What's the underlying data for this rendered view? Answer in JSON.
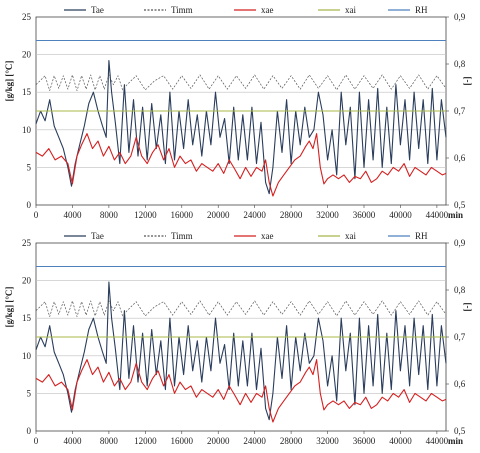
{
  "colors": {
    "Tae": "#2a3d5c",
    "Timm": "#555555",
    "xae": "#d42020",
    "xai": "#a8b84a",
    "RH": "#4f81bd",
    "grid": "#bfbfbf",
    "axis": "#444444"
  },
  "chart_data": [
    {
      "type": "line",
      "ylabel": "[g/kg] [°C]",
      "y2label": "[-]",
      "xunit": "min",
      "xlim": [
        0,
        45000
      ],
      "ylim": [
        0,
        25
      ],
      "y2lim": [
        0.5,
        0.9
      ],
      "x_ticks": [
        "0",
        "4000",
        "8000",
        "12000",
        "16000",
        "20000",
        "24000",
        "28000",
        "32000",
        "36000",
        "40000",
        "44000"
      ],
      "y_ticks": [
        "0",
        "5",
        "10",
        "15",
        "20",
        "25"
      ],
      "y2_ticks": [
        "0,5",
        "0,6",
        "0,7",
        "0,8",
        "0,9"
      ],
      "grid": true,
      "legend_position": "top",
      "series": [
        {
          "name": "Tae",
          "style": "solid",
          "x": [
            0,
            500,
            1000,
            1500,
            2000,
            2500,
            3000,
            3500,
            3900,
            4300,
            4800,
            5300,
            5800,
            6300,
            6800,
            7300,
            7700,
            8000,
            8300,
            8700,
            9200,
            9700,
            10200,
            10700,
            11200,
            11700,
            12200,
            12700,
            13200,
            13700,
            14200,
            14700,
            15200,
            15700,
            16200,
            16700,
            17200,
            17700,
            18200,
            18700,
            19200,
            19700,
            20200,
            20700,
            21200,
            21700,
            22200,
            22700,
            23200,
            23700,
            24200,
            24700,
            25200,
            25600,
            26000,
            26500,
            27000,
            27500,
            28000,
            28500,
            29000,
            29500,
            30000,
            30500,
            31000,
            31500,
            32000,
            32500,
            33000,
            33500,
            34000,
            34500,
            35000,
            35500,
            36000,
            36500,
            37000,
            37500,
            38000,
            38500,
            39000,
            39500,
            40000,
            40500,
            41000,
            41500,
            42000,
            42500,
            43000,
            43500,
            44000,
            44500,
            45000
          ],
          "y": [
            10.8,
            12.5,
            11.2,
            14,
            10.5,
            9,
            7.5,
            5,
            2.5,
            5.5,
            8,
            10.5,
            13.5,
            15,
            12.5,
            10.5,
            9,
            19.2,
            15,
            11,
            5.5,
            16,
            7,
            14,
            6.5,
            13,
            6,
            13.5,
            7.5,
            12,
            5.5,
            15,
            6,
            12.5,
            7.5,
            14,
            8,
            12,
            6.5,
            12.5,
            8,
            15,
            9,
            11.5,
            5.5,
            13,
            6,
            12,
            6,
            13,
            5.5,
            11,
            3,
            1.5,
            5,
            12.5,
            7,
            14,
            5.5,
            12.5,
            8,
            13,
            9,
            10,
            15,
            12,
            6,
            10,
            4,
            15,
            8,
            13,
            3.5,
            15,
            5,
            14,
            6,
            15.5,
            5,
            13,
            5.5,
            16,
            8,
            14,
            6,
            15,
            7.5,
            14,
            5.5,
            15.5,
            6,
            14,
            9
          ]
        },
        {
          "name": "Timm",
          "style": "dashed",
          "x": [
            0,
            1000,
            1500,
            2000,
            2500,
            3000,
            3500,
            4000,
            4500,
            5000,
            5500,
            6000,
            6500,
            7000,
            7500,
            8000,
            8500,
            9000,
            9500,
            10000,
            11000,
            12000,
            13000,
            14000,
            15000,
            16000,
            17000,
            18000,
            19000,
            20000,
            21000,
            22000,
            23000,
            24000,
            25000,
            26000,
            27000,
            28000,
            29000,
            30000,
            31000,
            32000,
            33000,
            34000,
            35000,
            36000,
            37000,
            38000,
            39000,
            40000,
            41000,
            42000,
            43000,
            44000,
            45000
          ],
          "y": [
            16,
            17.2,
            15.2,
            17.2,
            15.5,
            17.2,
            15.4,
            17.3,
            15.2,
            17.2,
            15.4,
            17.3,
            15.3,
            17.2,
            15.4,
            17.3,
            16,
            17.2,
            15.3,
            16,
            17.2,
            15.3,
            16.5,
            17.2,
            15.4,
            17.2,
            15.5,
            17.3,
            15.4,
            17.2,
            15.4,
            17.2,
            15.5,
            17.3,
            15.4,
            17.2,
            15.5,
            17.2,
            15.4,
            17.3,
            15.5,
            17.2,
            15.3,
            17.3,
            15.4,
            17.2,
            15.5,
            17.3,
            15.4,
            17.2,
            15.5,
            17.3,
            15.4,
            17.2,
            15.5
          ]
        },
        {
          "name": "xae",
          "style": "solid",
          "x": [
            0,
            700,
            1400,
            2100,
            2800,
            3500,
            4000,
            4500,
            5000,
            5600,
            6200,
            6800,
            7400,
            8000,
            8600,
            9200,
            9800,
            10400,
            11000,
            11600,
            12200,
            12800,
            13400,
            14000,
            14600,
            15200,
            15800,
            16400,
            17000,
            17600,
            18200,
            18800,
            19400,
            20000,
            20600,
            21200,
            21800,
            22400,
            23000,
            23600,
            24200,
            24800,
            25200,
            25600,
            26000,
            26600,
            27200,
            27800,
            28400,
            29000,
            29600,
            30000,
            30400,
            30800,
            31200,
            31600,
            32000,
            32600,
            33200,
            33800,
            34400,
            35000,
            35600,
            36200,
            36800,
            37400,
            38000,
            38600,
            39200,
            39800,
            40400,
            41000,
            41600,
            42200,
            42800,
            43400,
            44000,
            44600,
            45000
          ],
          "y": [
            7,
            6.5,
            7.5,
            6,
            6.5,
            5.5,
            2.8,
            6.5,
            8,
            9.5,
            7.5,
            8.5,
            6.5,
            7.8,
            6,
            7,
            5.5,
            6.5,
            9,
            6.5,
            5.5,
            7,
            8,
            6,
            7.5,
            5,
            6.5,
            5.5,
            6,
            4.5,
            5.5,
            5,
            4.5,
            5.5,
            4.2,
            6,
            4.8,
            3.5,
            5,
            3.8,
            5,
            4.5,
            6,
            3,
            1.2,
            3,
            4,
            5,
            6,
            6.5,
            7.8,
            8.5,
            7.5,
            9.5,
            5,
            2.8,
            3.5,
            4,
            3.5,
            4,
            3,
            3.8,
            3.5,
            4.5,
            3,
            3.5,
            4.5,
            4,
            5,
            4.5,
            5.5,
            3.8,
            5,
            4.5,
            4,
            5,
            4.5,
            4,
            4.2
          ]
        },
        {
          "name": "xai",
          "style": "solid",
          "x": [
            0,
            45000
          ],
          "y": [
            12.5,
            12.5
          ]
        },
        {
          "name": "RH",
          "style": "solid",
          "axis": "right",
          "x": [
            0,
            45000
          ],
          "y": [
            0.85,
            0.85
          ]
        }
      ]
    },
    {
      "type": "line",
      "ylabel": "[g/kg] [°C]",
      "y2label": "[-]",
      "xunit": "min",
      "xlim": [
        0,
        45000
      ],
      "ylim": [
        0,
        25
      ],
      "y2lim": [
        0.5,
        0.9
      ],
      "x_ticks": [
        "0",
        "4000",
        "8000",
        "12000",
        "16000",
        "20000",
        "24000",
        "28000",
        "32000",
        "36000",
        "40000",
        "44000"
      ],
      "y_ticks": [
        "0",
        "5",
        "10",
        "15",
        "20",
        "25"
      ],
      "y2_ticks": [
        "0,5",
        "0,6",
        "0,7",
        "0,8",
        "0,9"
      ],
      "grid": true,
      "legend_position": "top",
      "series": [
        {
          "name": "Tae",
          "style": "solid",
          "x": [
            0,
            500,
            1000,
            1500,
            2000,
            2500,
            3000,
            3500,
            3900,
            4300,
            4800,
            5300,
            5800,
            6300,
            6800,
            7300,
            7700,
            8000,
            8300,
            8700,
            9200,
            9700,
            10200,
            10700,
            11200,
            11700,
            12200,
            12700,
            13200,
            13700,
            14200,
            14700,
            15200,
            15700,
            16200,
            16700,
            17200,
            17700,
            18200,
            18700,
            19200,
            19700,
            20200,
            20700,
            21200,
            21700,
            22200,
            22700,
            23200,
            23700,
            24200,
            24700,
            25200,
            25600,
            26000,
            26500,
            27000,
            27500,
            28000,
            28500,
            29000,
            29500,
            30000,
            30500,
            31000,
            31500,
            32000,
            32500,
            33000,
            33500,
            34000,
            34500,
            35000,
            35500,
            36000,
            36500,
            37000,
            37500,
            38000,
            38500,
            39000,
            39500,
            40000,
            40500,
            41000,
            41500,
            42000,
            42500,
            43000,
            43500,
            44000,
            44500,
            45000
          ],
          "y": [
            10.8,
            12.5,
            11.2,
            14,
            10.5,
            9,
            7.5,
            5,
            2.5,
            5.5,
            8,
            10.5,
            13.5,
            15,
            12.5,
            10.5,
            9,
            19.8,
            15,
            11,
            5.5,
            16,
            7,
            14,
            6.5,
            13,
            6,
            13.5,
            7.5,
            12,
            5.5,
            15,
            6,
            12.5,
            7.5,
            14,
            8,
            12,
            6.5,
            12.5,
            8,
            15,
            9,
            11.5,
            5.5,
            13,
            6,
            12,
            6,
            13,
            5.5,
            11,
            3,
            1.5,
            5,
            12.5,
            7,
            14,
            5.5,
            12.5,
            8,
            13,
            9,
            10,
            15,
            12,
            6,
            10,
            4,
            15,
            8,
            13,
            3.5,
            15,
            5,
            14,
            6,
            15.5,
            5,
            13,
            5.5,
            16,
            8,
            14,
            6,
            15,
            7.5,
            14,
            5.5,
            15.5,
            6,
            14,
            9
          ]
        },
        {
          "name": "Timm",
          "style": "dashed",
          "x": [
            0,
            1000,
            1500,
            2000,
            2500,
            3000,
            3500,
            4000,
            4500,
            5000,
            5500,
            6000,
            6500,
            7000,
            7500,
            8000,
            8500,
            9000,
            9500,
            10000,
            11000,
            12000,
            13000,
            14000,
            15000,
            16000,
            17000,
            18000,
            19000,
            20000,
            21000,
            22000,
            23000,
            24000,
            25000,
            26000,
            27000,
            28000,
            29000,
            30000,
            31000,
            32000,
            33000,
            34000,
            35000,
            36000,
            37000,
            38000,
            39000,
            40000,
            41000,
            42000,
            43000,
            44000,
            45000
          ],
          "y": [
            16,
            17.2,
            15.2,
            17.2,
            15.5,
            17.2,
            15.4,
            17.3,
            15.2,
            17.2,
            15.4,
            17.3,
            15.3,
            17.2,
            15.4,
            17.3,
            16,
            17.2,
            15.3,
            16,
            17.2,
            15.3,
            16.5,
            17.2,
            15.4,
            17.2,
            15.5,
            17.3,
            15.4,
            17.2,
            15.4,
            17.2,
            15.5,
            17.3,
            15.4,
            17.2,
            15.5,
            17.2,
            15.4,
            17.3,
            15.5,
            17.2,
            15.3,
            17.3,
            15.4,
            17.2,
            15.5,
            17.3,
            15.4,
            17.2,
            15.5,
            17.3,
            15.4,
            17.2,
            15.5
          ]
        },
        {
          "name": "xae",
          "style": "solid",
          "x": [
            0,
            700,
            1400,
            2100,
            2800,
            3500,
            4000,
            4500,
            5000,
            5600,
            6200,
            6800,
            7400,
            8000,
            8600,
            9200,
            9800,
            10400,
            11000,
            11600,
            12200,
            12800,
            13400,
            14000,
            14600,
            15200,
            15800,
            16400,
            17000,
            17600,
            18200,
            18800,
            19400,
            20000,
            20600,
            21200,
            21800,
            22400,
            23000,
            23600,
            24200,
            24800,
            25200,
            25600,
            26000,
            26600,
            27200,
            27800,
            28400,
            29000,
            29600,
            30000,
            30400,
            30800,
            31200,
            31600,
            32000,
            32600,
            33200,
            33800,
            34400,
            35000,
            35600,
            36200,
            36800,
            37400,
            38000,
            38600,
            39200,
            39800,
            40400,
            41000,
            41600,
            42200,
            42800,
            43400,
            44000,
            44600,
            45000
          ],
          "y": [
            7,
            6.5,
            7.5,
            6,
            6.5,
            5.5,
            2.8,
            6.5,
            8,
            9.5,
            7.5,
            8.5,
            6.5,
            7.8,
            6,
            7,
            5.5,
            6.5,
            9,
            6.5,
            5.5,
            7,
            8,
            6,
            7.5,
            5,
            6.5,
            5.5,
            6,
            4.5,
            5.5,
            5,
            4.5,
            5.5,
            4.2,
            6,
            4.8,
            3.5,
            5,
            3.8,
            5,
            4.5,
            6,
            3,
            1.2,
            3,
            4,
            5,
            6,
            6.5,
            7.8,
            8.5,
            7.5,
            9.5,
            5,
            2.8,
            3.5,
            4,
            3.5,
            4,
            3,
            3.8,
            3.5,
            4.5,
            3,
            3.5,
            4.5,
            4,
            5,
            4.5,
            5.5,
            3.8,
            5,
            4.5,
            4,
            5,
            4.5,
            4,
            4.2
          ]
        },
        {
          "name": "xai",
          "style": "solid",
          "x": [
            0,
            45000
          ],
          "y": [
            12.5,
            12.5
          ]
        },
        {
          "name": "RH",
          "style": "solid",
          "axis": "right",
          "x": [
            0,
            45000
          ],
          "y": [
            0.85,
            0.85
          ]
        }
      ]
    }
  ]
}
